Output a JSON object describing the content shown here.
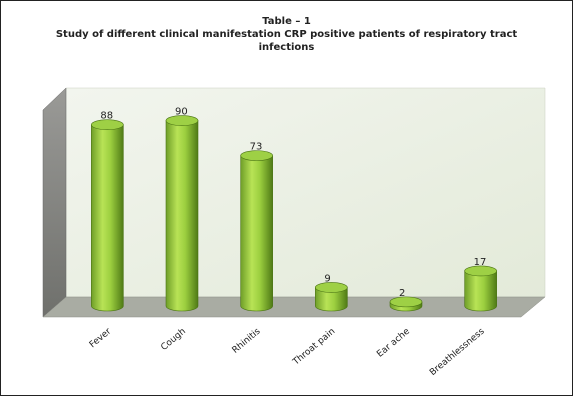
{
  "chart_data": {
    "type": "bar",
    "title_lines": [
      "Table – 1",
      "Study of different clinical  manifestation CRP positive patients of respiratory tract",
      "infections"
    ],
    "categories": [
      "Fever",
      "Cough",
      "Rhinitis",
      "Throat pain",
      "Ear ache",
      "Breathlessness"
    ],
    "values": [
      88,
      90,
      73,
      9,
      2,
      17
    ],
    "ylim": [
      0,
      100
    ],
    "xlabel": "",
    "ylabel": "",
    "grid": false,
    "legend": "none",
    "colors": {
      "bar_light": "#b6e24f",
      "bar_mid": "#8fc23a",
      "bar_dark": "#5a8a1c",
      "bar_top": "#9ed045",
      "back_wall": "#e9efe2",
      "side_wall": "#8a8a88",
      "floor": "#a9aca3"
    }
  }
}
